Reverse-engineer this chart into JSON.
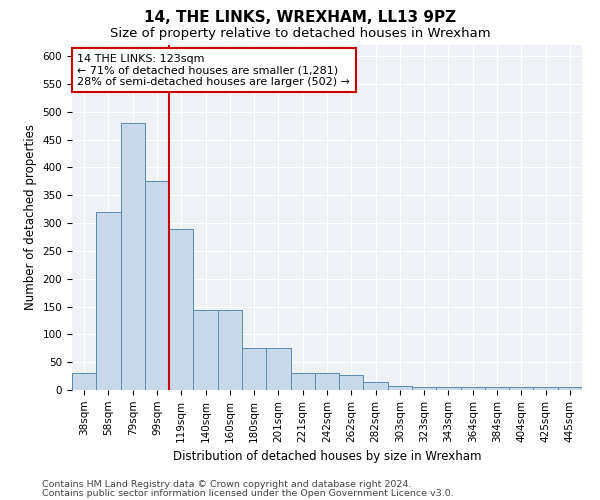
{
  "title": "14, THE LINKS, WREXHAM, LL13 9PZ",
  "subtitle": "Size of property relative to detached houses in Wrexham",
  "xlabel": "Distribution of detached houses by size in Wrexham",
  "ylabel": "Number of detached properties",
  "categories": [
    "38sqm",
    "58sqm",
    "79sqm",
    "99sqm",
    "119sqm",
    "140sqm",
    "160sqm",
    "180sqm",
    "201sqm",
    "221sqm",
    "242sqm",
    "262sqm",
    "282sqm",
    "303sqm",
    "323sqm",
    "343sqm",
    "364sqm",
    "384sqm",
    "404sqm",
    "425sqm",
    "445sqm"
  ],
  "values": [
    30,
    320,
    480,
    375,
    290,
    143,
    143,
    75,
    75,
    30,
    30,
    27,
    15,
    8,
    5,
    5,
    5,
    5,
    5,
    5,
    5
  ],
  "bar_color": "#c9d9ea",
  "bar_edge_color": "#5a8ab0",
  "property_line_color": "#cc0000",
  "annotation_title": "14 THE LINKS: 123sqm",
  "annotation_line1": "← 71% of detached houses are smaller (1,281)",
  "annotation_line2": "28% of semi-detached houses are larger (502) →",
  "annotation_box_color": "#ffffff",
  "annotation_box_edge": "#cc0000",
  "ylim": [
    0,
    620
  ],
  "yticks": [
    0,
    50,
    100,
    150,
    200,
    250,
    300,
    350,
    400,
    450,
    500,
    550,
    600
  ],
  "footer1": "Contains HM Land Registry data © Crown copyright and database right 2024.",
  "footer2": "Contains public sector information licensed under the Open Government Licence v3.0.",
  "background_color": "#ffffff",
  "plot_bg_color": "#eef2f7",
  "grid_color": "#ffffff",
  "title_fontsize": 11,
  "subtitle_fontsize": 9.5,
  "axis_label_fontsize": 8.5,
  "tick_fontsize": 7.5,
  "annotation_fontsize": 8,
  "footer_fontsize": 6.8
}
